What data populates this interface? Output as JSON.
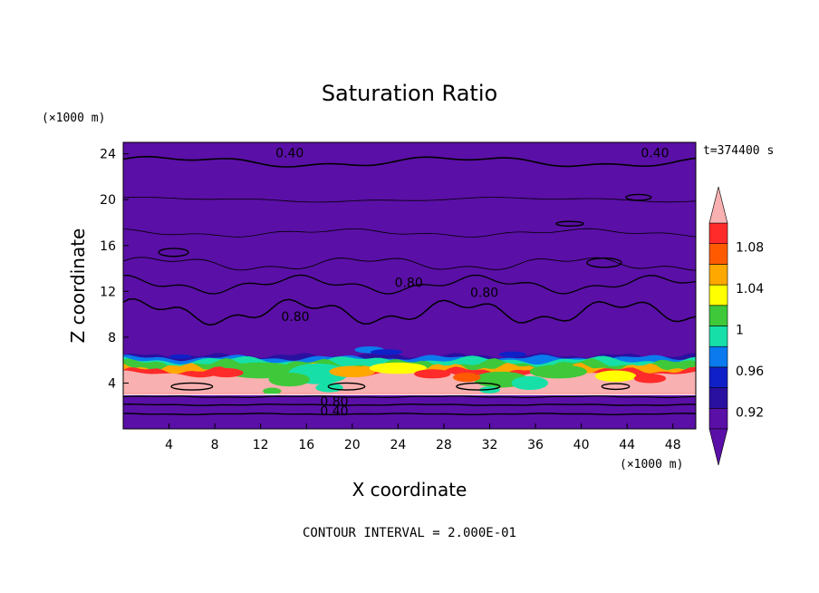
{
  "chart_data": {
    "type": "heatmap",
    "title": "Saturation Ratio",
    "time_label": "t=374400 s",
    "xlabel": "X coordinate",
    "ylabel": "Z coordinate",
    "x_unit": "(×1000 m)",
    "y_unit": "(×1000 m)",
    "xlim": [
      0,
      50
    ],
    "ylim": [
      0,
      25
    ],
    "x_ticks": [
      4,
      8,
      12,
      16,
      20,
      24,
      28,
      32,
      36,
      40,
      44,
      48
    ],
    "y_ticks": [
      4,
      8,
      12,
      16,
      20,
      24
    ],
    "footer": "CONTOUR INTERVAL = 2.000E-01",
    "colorbar": {
      "levels": [
        0.92,
        0.94,
        0.96,
        0.98,
        1.0,
        1.02,
        1.04,
        1.06,
        1.08,
        1.1
      ],
      "tick_labels": [
        "0.92",
        "0.96",
        "1",
        "1.04",
        "1.08"
      ],
      "colors": [
        "#5a0fa6",
        "#2a10a0",
        "#1020c8",
        "#0a7aee",
        "#16e0a8",
        "#3ec83a",
        "#ffff00",
        "#ffa800",
        "#ff5a00",
        "#ff2a2a",
        "#f8b0b0"
      ],
      "extend": "both"
    },
    "layers": [
      {
        "z_from": 6.3,
        "z_to": 25,
        "value": "<0.92"
      },
      {
        "z_from": 6.0,
        "z_to": 6.3,
        "value": "0.96-0.98"
      },
      {
        "z_from": 5.5,
        "z_to": 6.0,
        "value": "0.98-1.04"
      },
      {
        "z_from": 4.5,
        "z_to": 5.5,
        "value": "1.06-1.10"
      },
      {
        "z_from": 3.0,
        "z_to": 4.5,
        "value": ">1.10"
      },
      {
        "z_from": 0,
        "z_to": 3.0,
        "value": "<0.92"
      }
    ],
    "contour_labels": [
      {
        "text": "0.40",
        "x": 13.3,
        "z": 23.7
      },
      {
        "text": "0.40",
        "x": 45.2,
        "z": 23.7
      },
      {
        "text": "0.80",
        "x": 23.7,
        "z": 12.4
      },
      {
        "text": "0.80",
        "x": 30.3,
        "z": 11.5
      },
      {
        "text": "0.80",
        "x": 13.8,
        "z": 9.4
      },
      {
        "text": "0.80",
        "x": 17.2,
        "z": 2.0
      },
      {
        "text": "0.40",
        "x": 17.2,
        "z": 1.2
      }
    ]
  }
}
